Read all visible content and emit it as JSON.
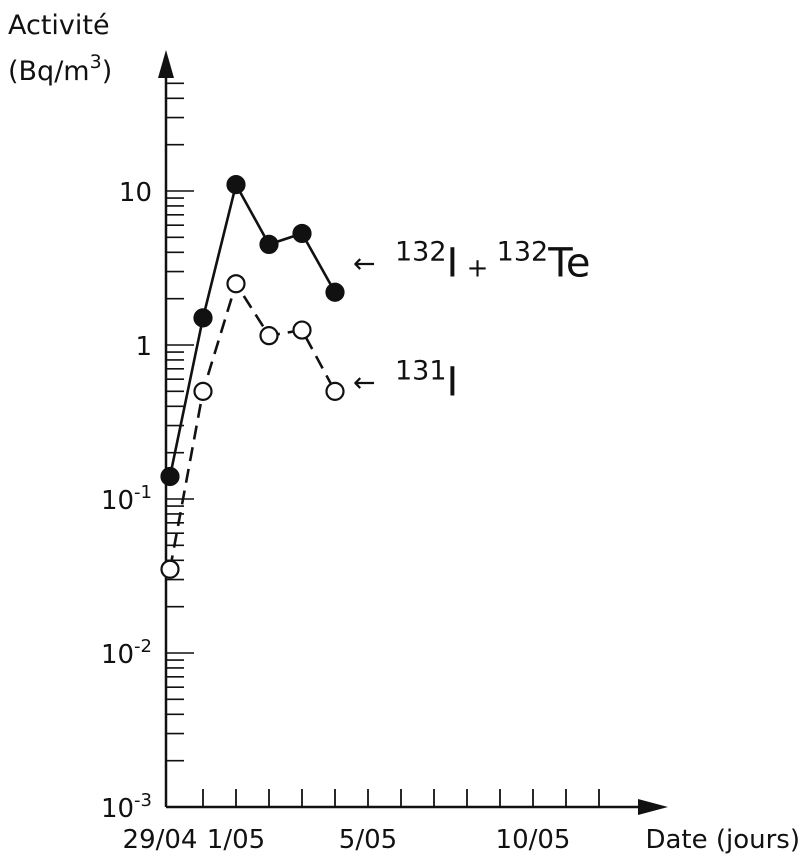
{
  "chart_data": {
    "type": "line",
    "yscale": "log",
    "ylim": [
      0.001,
      60
    ],
    "xlim": [
      0,
      15
    ],
    "ylabel_line1": "Activité",
    "ylabel_line2_prefix": "(Bq/m",
    "ylabel_line2_sup": "3",
    "ylabel_line2_suffix": ")",
    "y_ticks": [
      {
        "value": 10,
        "base": "10",
        "exp": ""
      },
      {
        "value": 1,
        "base": "1",
        "exp": ""
      },
      {
        "value": 0.1,
        "base": "10",
        "exp": "-1"
      },
      {
        "value": 0.01,
        "base": "10",
        "exp": "-2"
      },
      {
        "value": 0.001,
        "base": "10",
        "exp": "-3"
      }
    ],
    "x_ticks": [
      {
        "x": 0,
        "label": "29/04"
      },
      {
        "x": 2,
        "label": "1/05"
      },
      {
        "x": 6,
        "label": "5/05"
      },
      {
        "x": 11,
        "label": "10/05"
      }
    ],
    "x_axis_title": "Date (jours)",
    "series": [
      {
        "style": "solid-filled",
        "x": [
          0,
          1,
          2,
          3,
          4,
          5
        ],
        "values": [
          0.14,
          1.5,
          11,
          4.5,
          5.3,
          2.2
        ],
        "legend": {
          "sup1": "132",
          "t1": "I",
          "plus": "+",
          "sup2": "132",
          "t2": "Te",
          "arrow": "←"
        }
      },
      {
        "style": "dashed-open",
        "x": [
          0,
          1,
          2,
          3,
          4,
          5
        ],
        "values": [
          0.035,
          0.5,
          2.5,
          1.15,
          1.25,
          0.5
        ],
        "legend": {
          "sup1": "131",
          "t1": "I",
          "arrow": "←"
        }
      }
    ]
  }
}
